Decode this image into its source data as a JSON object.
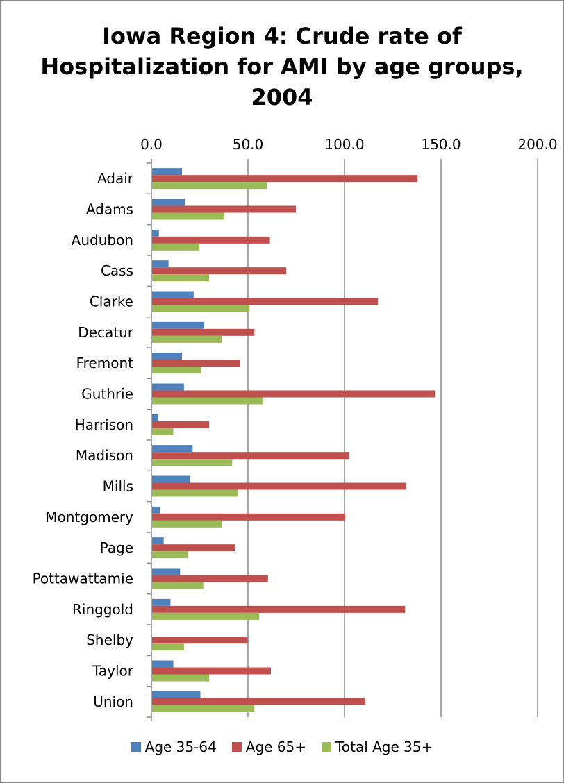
{
  "chart_data": {
    "type": "bar",
    "orientation": "horizontal",
    "title": "Iowa Region 4: Crude rate of Hospitalization for AMI by age groups, 2004",
    "title_lines": [
      "Iowa Region 4: Crude rate of",
      "Hospitalization for AMI by age groups,",
      "2004"
    ],
    "xlim": [
      0,
      200
    ],
    "x_ticks": [
      "0.0",
      "50.0",
      "100.0",
      "150.0",
      "200.0"
    ],
    "x_tick_values": [
      0,
      50,
      100,
      150,
      200
    ],
    "x_axis_position": "top",
    "grid": "vertical major gridlines",
    "legend_position": "bottom",
    "categories": [
      "Adair",
      "Adams",
      "Audubon",
      "Cass",
      "Clarke",
      "Decatur",
      "Fremont",
      "Guthrie",
      "Harrison",
      "Madison",
      "Mills",
      "Montgomery",
      "Page",
      "Pottawattamie",
      "Ringgold",
      "Shelby",
      "Taylor",
      "Union"
    ],
    "series": [
      {
        "name": "Age 35-64",
        "color": "#4f81bd",
        "values": [
          15.5,
          17.0,
          3.5,
          8.5,
          21.5,
          27.0,
          15.5,
          16.5,
          3.0,
          21.0,
          19.5,
          4.0,
          6.0,
          14.5,
          9.5,
          0,
          11.0,
          25.0
        ]
      },
      {
        "name": "Age 65+",
        "color": "#c0504d",
        "values": [
          137.5,
          74.5,
          61.0,
          69.5,
          117.0,
          53.0,
          45.5,
          146.5,
          29.5,
          102.0,
          131.5,
          100.0,
          43.0,
          60.0,
          131.0,
          49.5,
          61.5,
          110.5
        ]
      },
      {
        "name": "Total Age 35+",
        "color": "#9bbb59",
        "values": [
          59.5,
          37.5,
          24.5,
          29.5,
          50.5,
          36.0,
          25.5,
          57.5,
          11.0,
          41.5,
          44.5,
          36.0,
          18.5,
          26.5,
          55.5,
          16.5,
          29.5,
          53.0
        ]
      }
    ]
  }
}
